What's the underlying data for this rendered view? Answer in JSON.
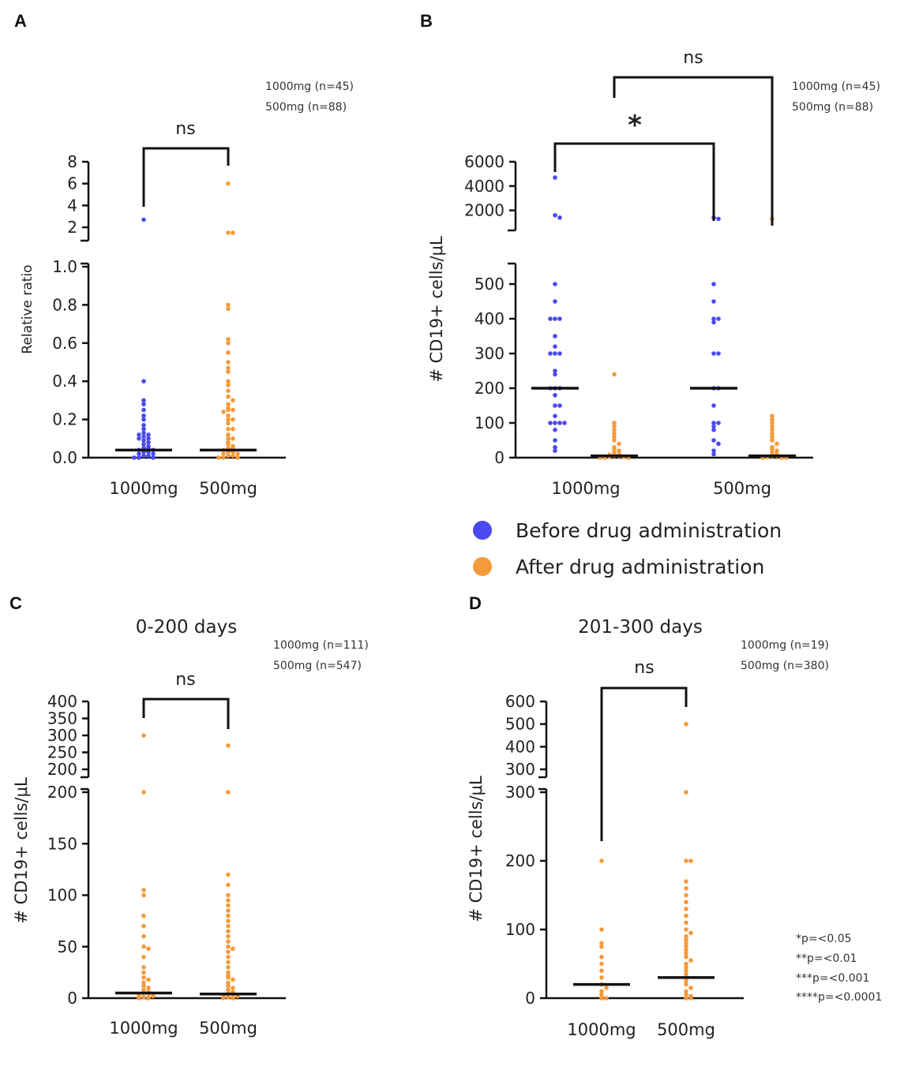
{
  "colors": {
    "before": "#4a4af0",
    "after": "#f59a3a",
    "axis": "#111111"
  },
  "legend": {
    "before_label": "Before drug administration",
    "after_label": "After drug administration"
  },
  "significance_key": [
    "*p=<0.05",
    "**p=<0.01",
    "***p=<0.001",
    "****p=<0.0001"
  ],
  "chart_data": [
    {
      "panel": "A",
      "type": "scatter",
      "title": "",
      "ylabel": "Relative ratio",
      "categories": [
        "1000mg",
        "500mg"
      ],
      "n_note": [
        "1000mg (n=45)",
        "500mg (n=88)"
      ],
      "axis": {
        "upper": {
          "range": [
            1.5,
            8
          ],
          "ticks": [
            2,
            4,
            6,
            8
          ]
        },
        "lower": {
          "range": [
            0,
            1.0
          ],
          "ticks": [
            "0.0",
            "0.2",
            "0.4",
            "0.6",
            "0.8",
            "1.0"
          ]
        }
      },
      "brackets": [
        {
          "from": 0,
          "to": 1,
          "label": "ns"
        }
      ],
      "groups": [
        {
          "category": "1000mg",
          "series": "before",
          "median": 0.04,
          "values": [
            2.7,
            0.4,
            0.3,
            0.28,
            0.25,
            0.22,
            0.2,
            0.17,
            0.15,
            0.13,
            0.12,
            0.12,
            0.11,
            0.1,
            0.1,
            0.09,
            0.08,
            0.07,
            0.06,
            0.05,
            0.05,
            0.04,
            0.04,
            0.03,
            0.03,
            0.02,
            0.02,
            0.01,
            0.01,
            0.0,
            0.0,
            0.0
          ]
        },
        {
          "category": "500mg",
          "series": "after",
          "median": 0.04,
          "values": [
            6.0,
            1.5,
            1.2,
            0.8,
            0.78,
            0.62,
            0.6,
            0.55,
            0.5,
            0.47,
            0.45,
            0.4,
            0.38,
            0.35,
            0.32,
            0.3,
            0.28,
            0.26,
            0.25,
            0.25,
            0.24,
            0.22,
            0.2,
            0.2,
            0.18,
            0.15,
            0.15,
            0.12,
            0.1,
            0.1,
            0.08,
            0.07,
            0.06,
            0.05,
            0.05,
            0.04,
            0.03,
            0.03,
            0.02,
            0.02,
            0.01,
            0.01,
            0.0,
            0.0,
            0.0
          ]
        }
      ]
    },
    {
      "panel": "B",
      "type": "scatter",
      "title": "",
      "ylabel": "# CD19+ cells/μL",
      "categories": [
        "1000mg",
        "500mg"
      ],
      "n_note": [
        "1000mg (n=45)",
        "500mg (n=88)"
      ],
      "axis": {
        "upper": {
          "range": [
            1000,
            6000
          ],
          "ticks": [
            2000,
            4000,
            6000
          ]
        },
        "lower": {
          "range": [
            0,
            550
          ],
          "ticks": [
            0,
            100,
            200,
            300,
            400,
            500
          ]
        }
      },
      "brackets": [
        {
          "from": "1000mg-before",
          "to": "500mg-before",
          "label": "*"
        },
        {
          "from": "1000mg",
          "to": "500mg-after",
          "label": "ns"
        }
      ],
      "groups": [
        {
          "category": "1000mg",
          "series": "before",
          "median": 200,
          "values": [
            4700,
            1600,
            1400,
            500,
            450,
            400,
            400,
            400,
            350,
            320,
            300,
            300,
            300,
            250,
            240,
            200,
            200,
            200,
            180,
            150,
            150,
            120,
            100,
            100,
            100,
            100,
            80,
            50,
            30,
            20
          ]
        },
        {
          "category": "1000mg",
          "series": "after",
          "median": 5,
          "values": [
            240,
            100,
            90,
            80,
            70,
            60,
            50,
            40,
            30,
            25,
            20,
            15,
            10,
            8,
            5,
            5,
            3,
            2,
            0,
            0,
            0
          ]
        },
        {
          "category": "500mg",
          "series": "before",
          "median": 200,
          "values": [
            1400,
            1300,
            500,
            450,
            400,
            400,
            390,
            300,
            300,
            200,
            200,
            150,
            100,
            100,
            90,
            80,
            50,
            40,
            20,
            10
          ]
        },
        {
          "category": "500mg",
          "series": "after",
          "median": 5,
          "values": [
            1300,
            120,
            110,
            100,
            90,
            80,
            70,
            60,
            50,
            40,
            30,
            25,
            20,
            15,
            10,
            5,
            5,
            2,
            0,
            0,
            0
          ]
        }
      ]
    },
    {
      "panel": "C",
      "type": "scatter",
      "title": "0-200 days",
      "ylabel": "# CD19+ cells/μL",
      "categories": [
        "1000mg",
        "500mg"
      ],
      "n_note": [
        "1000mg (n=111)",
        "500mg (n=547)"
      ],
      "axis": {
        "upper": {
          "range": [
            200,
            400
          ],
          "ticks": [
            200,
            250,
            300,
            350,
            400
          ]
        },
        "lower": {
          "range": [
            0,
            200
          ],
          "ticks": [
            0,
            50,
            100,
            150,
            200
          ]
        }
      },
      "brackets": [
        {
          "from": 0,
          "to": 1,
          "label": "ns"
        }
      ],
      "groups": [
        {
          "category": "1000mg",
          "series": "after",
          "median": 5,
          "values": [
            300,
            200,
            105,
            100,
            80,
            70,
            60,
            50,
            48,
            40,
            30,
            25,
            20,
            18,
            15,
            12,
            10,
            8,
            6,
            5,
            4,
            3,
            2,
            1,
            0,
            0
          ]
        },
        {
          "category": "500mg",
          "series": "after",
          "median": 4,
          "values": [
            270,
            200,
            120,
            110,
            100,
            95,
            90,
            85,
            80,
            75,
            70,
            65,
            60,
            55,
            50,
            48,
            45,
            40,
            35,
            30,
            25,
            22,
            20,
            18,
            15,
            12,
            10,
            8,
            6,
            5,
            4,
            3,
            2,
            1,
            0,
            0
          ]
        }
      ]
    },
    {
      "panel": "D",
      "type": "scatter",
      "title": "201-300 days",
      "ylabel": "# CD19+ cells/μL",
      "categories": [
        "1000mg",
        "500mg"
      ],
      "n_note": [
        "1000mg (n=19)",
        "500mg (n=380)"
      ],
      "axis": {
        "upper": {
          "range": [
            300,
            600
          ],
          "ticks": [
            300,
            400,
            500,
            600
          ]
        },
        "lower": {
          "range": [
            0,
            300
          ],
          "ticks": [
            0,
            100,
            200,
            300
          ]
        }
      },
      "brackets": [
        {
          "from": 0,
          "to": 1,
          "label": "ns"
        }
      ],
      "groups": [
        {
          "category": "1000mg",
          "series": "after",
          "median": 20,
          "values": [
            200,
            100,
            80,
            75,
            60,
            50,
            40,
            30,
            20,
            15,
            10,
            5,
            0,
            0
          ]
        },
        {
          "category": "500mg",
          "series": "after",
          "median": 30,
          "values": [
            500,
            300,
            200,
            200,
            170,
            160,
            150,
            140,
            130,
            120,
            110,
            100,
            95,
            90,
            85,
            80,
            75,
            70,
            65,
            60,
            55,
            50,
            45,
            40,
            35,
            30,
            25,
            20,
            15,
            10,
            5,
            3,
            0,
            0
          ]
        }
      ]
    }
  ]
}
